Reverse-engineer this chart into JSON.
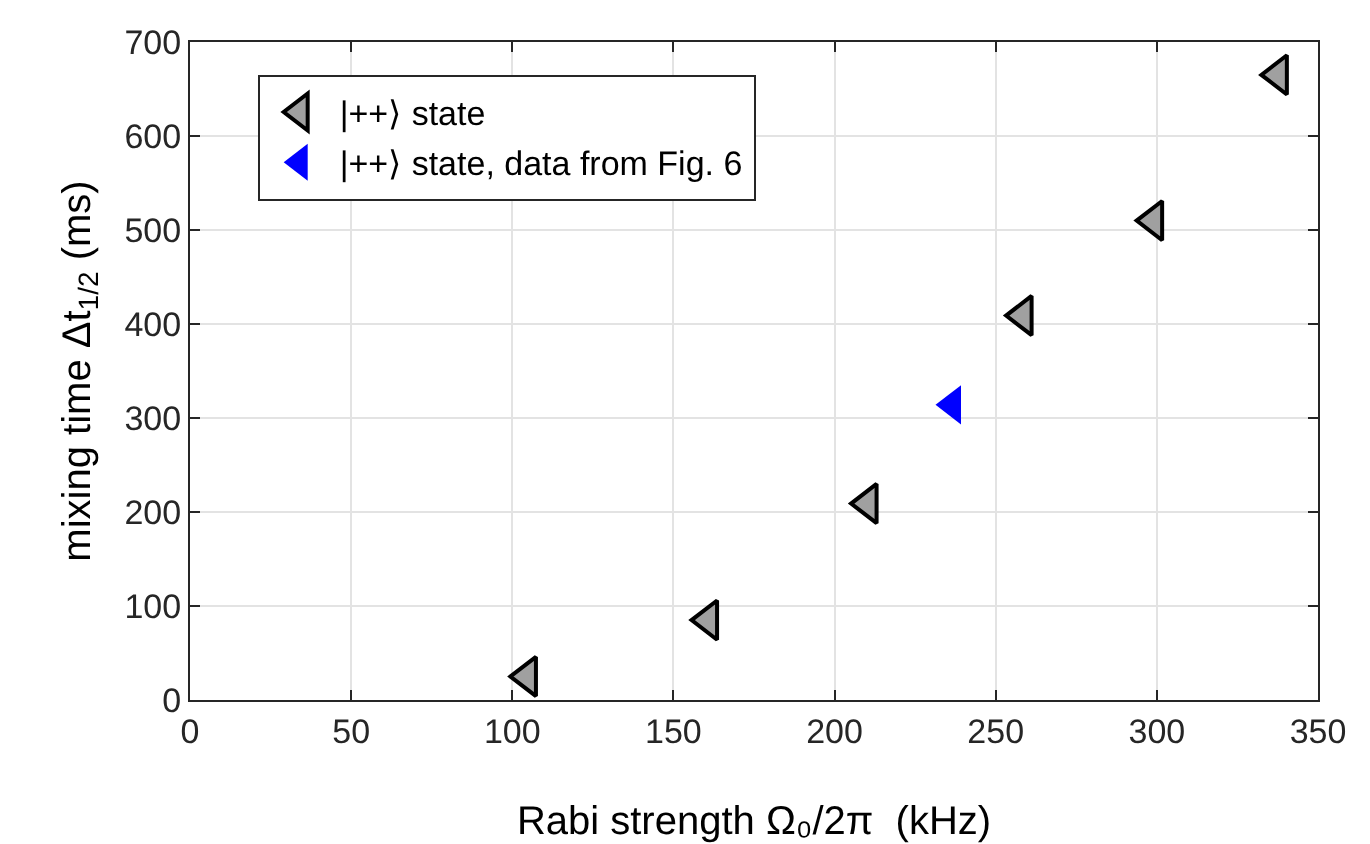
{
  "chart_data": {
    "type": "scatter",
    "xlabel": "Rabi strength Ω₀/2π  (kHz)",
    "ylabel": "mixing time Δt$_{1/2}$ (ms)",
    "xlim": [
      0,
      350
    ],
    "xticks": [
      0,
      50,
      100,
      150,
      200,
      250,
      300,
      350
    ],
    "ylim": [
      0,
      700
    ],
    "yticks": [
      0,
      100,
      200,
      300,
      400,
      500,
      600,
      700
    ],
    "grid": true,
    "legend": "top left",
    "marker": "triangle",
    "series": [
      {
        "name": "|++⟩ state",
        "color": "#a0a0a0",
        "x": [
          104.7,
          160.9,
          210.4,
          258.5,
          299,
          337.7
        ],
        "values": [
          25,
          85,
          209,
          409,
          510,
          665
        ]
      },
      {
        "name": "|++⟩ state, data from Fig. 6",
        "color": "#0000ff",
        "x": [
          236.6
        ],
        "values": [
          314
        ]
      }
    ]
  }
}
